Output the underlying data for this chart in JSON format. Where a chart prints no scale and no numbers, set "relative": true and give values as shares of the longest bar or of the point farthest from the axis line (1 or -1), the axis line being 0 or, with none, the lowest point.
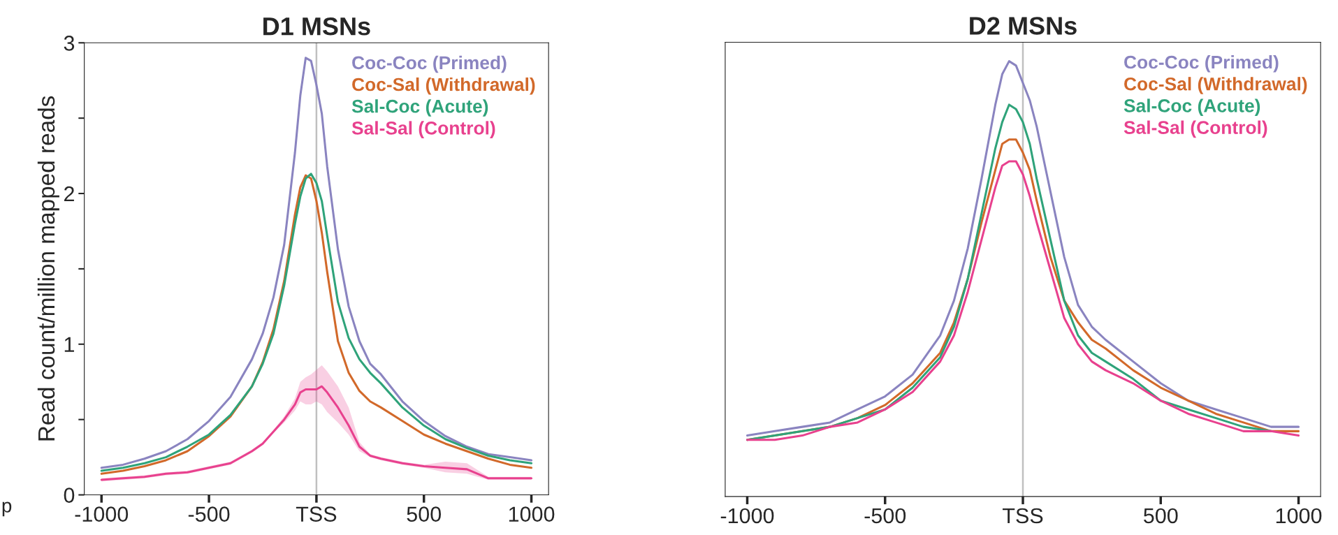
{
  "chart_data": [
    {
      "type": "line",
      "title": "D1 MSNs",
      "ylabel": "Read count/million mapped reads",
      "annotations": [
        "p"
      ],
      "x": [
        -1000,
        -900,
        -800,
        -700,
        -600,
        -500,
        -400,
        -300,
        -250,
        -200,
        -150,
        -100,
        -75,
        -50,
        -25,
        0,
        25,
        50,
        100,
        150,
        200,
        250,
        300,
        400,
        500,
        600,
        700,
        800,
        900,
        1000
      ],
      "xlim": [
        -1080,
        1080
      ],
      "xticks": [
        -1000,
        -500,
        {
          "value": 0,
          "label": "TSS"
        },
        500,
        1000
      ],
      "ylim": [
        0,
        3
      ],
      "yticks": [
        0,
        {
          "value": 0.5,
          "label": null
        },
        1,
        {
          "value": 1.5,
          "label": null
        },
        2,
        {
          "value": 2.5,
          "label": null
        },
        3
      ],
      "ref_lines": [
        {
          "axis": "x",
          "value": 0,
          "color": "#c0c0c0"
        }
      ],
      "legend": "top right",
      "series": [
        {
          "name": "Coc-Coc (Primed)",
          "color": "#8a84c0",
          "values": [
            0.18,
            0.2,
            0.24,
            0.29,
            0.37,
            0.49,
            0.65,
            0.9,
            1.07,
            1.31,
            1.66,
            2.27,
            2.65,
            2.9,
            2.88,
            2.72,
            2.53,
            2.18,
            1.63,
            1.25,
            1.02,
            0.87,
            0.8,
            0.62,
            0.49,
            0.39,
            0.32,
            0.27,
            0.25,
            0.23
          ]
        },
        {
          "name": "Coc-Sal (Withdrawal)",
          "color": "#d2692a",
          "values": [
            0.14,
            0.16,
            0.19,
            0.23,
            0.29,
            0.39,
            0.52,
            0.72,
            0.88,
            1.1,
            1.42,
            1.86,
            2.04,
            2.12,
            2.1,
            1.95,
            1.74,
            1.48,
            1.02,
            0.81,
            0.69,
            0.62,
            0.58,
            0.49,
            0.4,
            0.34,
            0.29,
            0.24,
            0.2,
            0.18
          ]
        },
        {
          "name": "Sal-Coc (Acute)",
          "color": "#2fa37a",
          "values": [
            0.16,
            0.18,
            0.21,
            0.25,
            0.32,
            0.4,
            0.53,
            0.72,
            0.87,
            1.07,
            1.39,
            1.8,
            1.98,
            2.1,
            2.13,
            2.07,
            1.95,
            1.72,
            1.28,
            1.04,
            0.9,
            0.81,
            0.74,
            0.58,
            0.46,
            0.37,
            0.31,
            0.26,
            0.23,
            0.21
          ]
        },
        {
          "name": "Sal-Sal (Control)",
          "color": "#e8418e",
          "values": [
            0.1,
            0.11,
            0.12,
            0.14,
            0.15,
            0.18,
            0.21,
            0.29,
            0.34,
            0.42,
            0.5,
            0.6,
            0.68,
            0.7,
            0.7,
            0.7,
            0.72,
            0.68,
            0.58,
            0.46,
            0.32,
            0.26,
            0.24,
            0.21,
            0.19,
            0.18,
            0.17,
            0.11,
            0.11,
            0.11
          ],
          "lower": [
            0.09,
            0.1,
            0.11,
            0.13,
            0.14,
            0.17,
            0.2,
            0.28,
            0.33,
            0.41,
            0.48,
            0.56,
            0.62,
            0.6,
            0.6,
            0.62,
            0.6,
            0.55,
            0.48,
            0.4,
            0.29,
            0.25,
            0.23,
            0.2,
            0.18,
            0.15,
            0.14,
            0.1,
            0.1,
            0.1
          ],
          "upper": [
            0.11,
            0.12,
            0.13,
            0.15,
            0.16,
            0.19,
            0.22,
            0.3,
            0.35,
            0.43,
            0.52,
            0.64,
            0.75,
            0.78,
            0.8,
            0.83,
            0.86,
            0.82,
            0.72,
            0.58,
            0.35,
            0.27,
            0.25,
            0.22,
            0.2,
            0.22,
            0.21,
            0.12,
            0.12,
            0.12
          ]
        }
      ]
    },
    {
      "type": "line",
      "title": "D2 MSNs",
      "relative": true,
      "x": [
        -1000,
        -900,
        -800,
        -700,
        -600,
        -500,
        -400,
        -300,
        -250,
        -200,
        -150,
        -100,
        -75,
        -50,
        -25,
        0,
        25,
        50,
        100,
        150,
        200,
        250,
        300,
        400,
        500,
        600,
        700,
        800,
        900,
        1000
      ],
      "xlim": [
        -1080,
        1080
      ],
      "xticks": [
        -1000,
        -500,
        {
          "value": 0,
          "label": "TSS"
        },
        500,
        1000
      ],
      "ref_lines": [
        {
          "axis": "x",
          "value": 0,
          "color": "#c0c0c0"
        }
      ],
      "legend": "top right",
      "series": [
        {
          "name": "Coc-Coc (Primed)",
          "color": "#8a84c0",
          "values": [
            0.14,
            0.15,
            0.16,
            0.17,
            0.2,
            0.23,
            0.28,
            0.37,
            0.45,
            0.57,
            0.73,
            0.9,
            0.97,
            1.0,
            0.99,
            0.95,
            0.91,
            0.85,
            0.7,
            0.55,
            0.44,
            0.39,
            0.36,
            0.31,
            0.26,
            0.22,
            0.2,
            0.18,
            0.16,
            0.16
          ]
        },
        {
          "name": "Coc-Sal (Withdrawal)",
          "color": "#d2692a",
          "values": [
            0.13,
            0.14,
            0.15,
            0.16,
            0.18,
            0.21,
            0.26,
            0.33,
            0.4,
            0.5,
            0.63,
            0.75,
            0.81,
            0.82,
            0.82,
            0.79,
            0.75,
            0.68,
            0.55,
            0.45,
            0.4,
            0.36,
            0.34,
            0.29,
            0.25,
            0.22,
            0.19,
            0.17,
            0.15,
            0.15
          ]
        },
        {
          "name": "Sal-Coc (Acute)",
          "color": "#2fa37a",
          "values": [
            0.13,
            0.14,
            0.15,
            0.16,
            0.18,
            0.2,
            0.25,
            0.32,
            0.39,
            0.5,
            0.65,
            0.8,
            0.86,
            0.9,
            0.89,
            0.86,
            0.81,
            0.73,
            0.59,
            0.45,
            0.37,
            0.33,
            0.31,
            0.27,
            0.22,
            0.2,
            0.18,
            0.16,
            0.15,
            null
          ]
        },
        {
          "name": "Sal-Sal (Control)",
          "color": "#e8418e",
          "values": [
            0.13,
            0.13,
            0.14,
            0.16,
            0.17,
            0.2,
            0.24,
            0.31,
            0.37,
            0.47,
            0.59,
            0.71,
            0.76,
            0.77,
            0.77,
            0.74,
            0.69,
            0.63,
            0.52,
            0.41,
            0.35,
            0.31,
            0.29,
            0.26,
            0.22,
            0.19,
            0.17,
            0.15,
            0.15,
            0.14
          ]
        }
      ]
    }
  ]
}
